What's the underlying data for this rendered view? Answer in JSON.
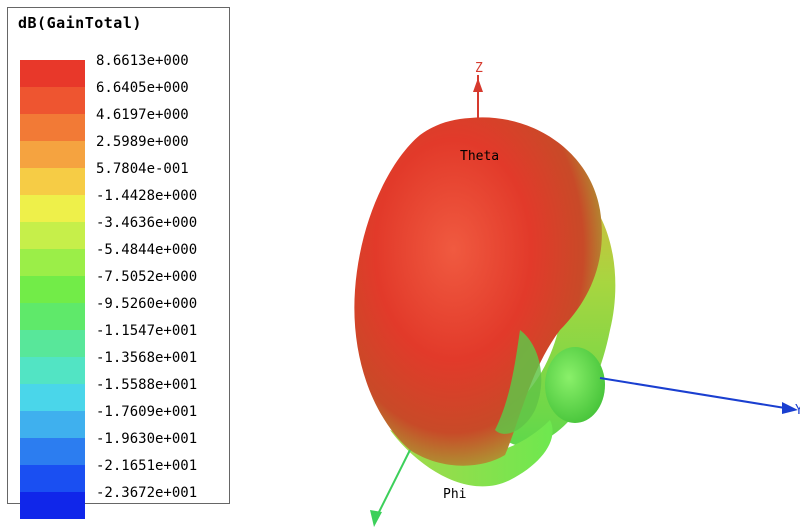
{
  "legend": {
    "title": "dB(GainTotal)",
    "entries": [
      {
        "label": "8.6613e+000",
        "color": "#e8382a"
      },
      {
        "label": "6.6405e+000",
        "color": "#ee5530"
      },
      {
        "label": "4.6197e+000",
        "color": "#f27a36"
      },
      {
        "label": "2.5989e+000",
        "color": "#f5a340"
      },
      {
        "label": "5.7804e-001",
        "color": "#f6cc45"
      },
      {
        "label": "-1.4428e+000",
        "color": "#eef04a"
      },
      {
        "label": "-3.4636e+000",
        "color": "#c6ef4a"
      },
      {
        "label": "-5.4844e+000",
        "color": "#9bee48"
      },
      {
        "label": "-7.5052e+000",
        "color": "#72ec48"
      },
      {
        "label": "-9.5260e+000",
        "color": "#5fe96a"
      },
      {
        "label": "-1.1547e+001",
        "color": "#58e79a"
      },
      {
        "label": "-1.3568e+001",
        "color": "#52e4c4"
      },
      {
        "label": "-1.5588e+001",
        "color": "#4ad6ea"
      },
      {
        "label": "-1.7609e+001",
        "color": "#3fb0ee"
      },
      {
        "label": "-1.9630e+001",
        "color": "#2c7df0"
      },
      {
        "label": "-2.1651e+001",
        "color": "#1a4ff2"
      },
      {
        "label": "-2.3672e+001",
        "color": "#1026ea"
      }
    ]
  },
  "axes": {
    "z_label": "Z",
    "theta_label": "Theta",
    "phi_label": "Phi",
    "y_label": "Y",
    "z_color": "#d63a2e",
    "y_color": "#1a3fd0",
    "x_color": "#3cd05a"
  },
  "pattern_colors": {
    "high": "#e63a2c",
    "mid": "#b9cc3d",
    "low": "#6ee84f"
  }
}
